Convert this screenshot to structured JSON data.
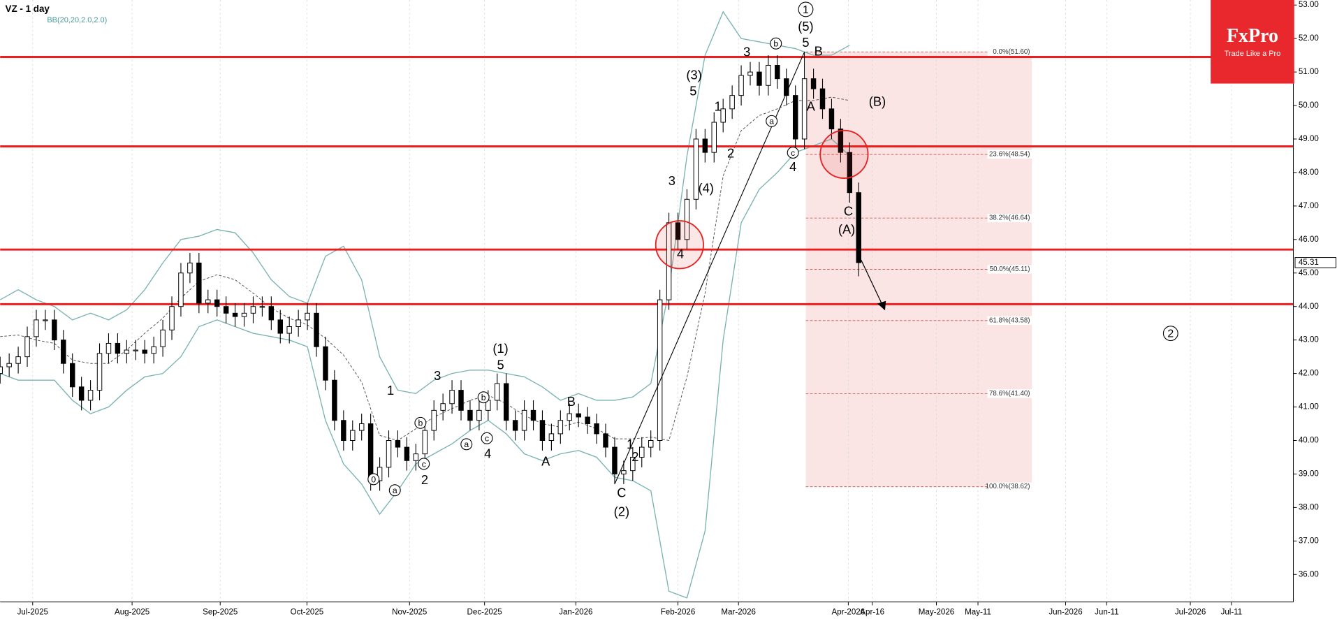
{
  "chart_data": {
    "type": "candlestick",
    "title": "VZ - 1 day",
    "indicator_label": "BB(20,20,2.0,2.0)",
    "x": [
      0,
      2,
      4,
      6,
      8,
      10,
      12,
      14,
      16,
      18,
      20,
      22,
      24,
      26,
      28,
      30,
      32,
      34,
      36,
      38,
      40,
      42,
      44,
      46,
      48,
      50,
      52,
      54,
      56,
      58,
      60,
      62,
      64,
      66,
      68,
      70,
      72,
      74,
      76,
      78,
      80,
      82,
      84,
      86,
      88,
      90,
      92,
      94,
      96,
      98,
      100,
      102,
      104,
      106,
      108,
      110,
      112,
      114,
      116,
      118,
      120,
      122,
      124,
      126,
      128,
      130,
      132,
      134,
      136,
      138,
      140,
      142,
      144,
      146,
      148,
      150,
      152,
      154,
      156,
      158,
      160,
      162,
      164,
      166,
      168,
      170,
      172,
      174,
      176,
      178,
      180,
      182,
      184,
      186,
      188,
      190
    ],
    "open": [
      42.0,
      42.2,
      42.3,
      42.5,
      43.1,
      43.6,
      43.6,
      43.0,
      42.3,
      41.6,
      41.2,
      41.5,
      42.6,
      42.9,
      42.6,
      42.7,
      42.7,
      42.6,
      42.8,
      43.3,
      44.0,
      45.0,
      45.3,
      44.1,
      44.2,
      44.0,
      43.8,
      43.7,
      43.8,
      44.0,
      44.0,
      43.6,
      43.2,
      43.4,
      43.6,
      43.8,
      42.8,
      41.8,
      40.6,
      40.0,
      40.3,
      40.5,
      38.8,
      39.2,
      40.0,
      39.8,
      39.4,
      39.6,
      40.3,
      40.9,
      41.1,
      41.5,
      40.9,
      40.6,
      40.9,
      41.2,
      41.7,
      40.6,
      40.3,
      40.9,
      40.6,
      40.0,
      40.2,
      40.6,
      40.8,
      40.7,
      40.5,
      40.2,
      39.8,
      39.0,
      39.1,
      39.5,
      39.8,
      40.0,
      44.2,
      46.5,
      46.0,
      47.2,
      49.0,
      48.6,
      49.5,
      49.9,
      50.3,
      50.9,
      51.0,
      50.6,
      51.2,
      50.8,
      50.3,
      49.0,
      50.8,
      50.5,
      49.9,
      49.3,
      48.6,
      47.4
    ],
    "high": [
      42.5,
      42.6,
      42.8,
      43.4,
      43.9,
      43.9,
      43.9,
      43.3,
      42.6,
      41.9,
      41.8,
      42.9,
      43.2,
      43.2,
      43.0,
      43.0,
      43.0,
      43.1,
      43.6,
      44.3,
      45.3,
      45.6,
      45.6,
      44.5,
      44.5,
      44.3,
      44.1,
      44.1,
      44.3,
      44.3,
      44.3,
      43.9,
      43.7,
      43.9,
      44.1,
      44.1,
      43.1,
      42.1,
      40.9,
      40.6,
      40.8,
      40.8,
      39.5,
      40.3,
      40.3,
      40.1,
      39.9,
      40.6,
      41.2,
      41.4,
      41.8,
      41.8,
      41.2,
      41.2,
      41.5,
      42.0,
      42.0,
      40.9,
      41.2,
      41.2,
      40.9,
      40.5,
      40.9,
      41.1,
      41.1,
      41.0,
      40.8,
      40.5,
      40.1,
      39.4,
      39.8,
      40.1,
      40.3,
      44.5,
      46.8,
      46.8,
      47.5,
      49.3,
      49.3,
      49.8,
      50.2,
      50.6,
      51.2,
      51.3,
      51.3,
      51.5,
      51.5,
      51.1,
      50.6,
      51.6,
      51.1,
      50.8,
      50.2,
      49.6,
      48.9,
      47.7
    ],
    "low": [
      41.7,
      41.9,
      42.0,
      42.2,
      42.8,
      43.3,
      42.7,
      42.0,
      41.3,
      40.9,
      40.9,
      41.2,
      42.3,
      42.3,
      42.3,
      42.4,
      42.3,
      42.3,
      42.5,
      43.0,
      43.7,
      44.7,
      43.8,
      43.8,
      43.7,
      43.5,
      43.4,
      43.4,
      43.5,
      43.7,
      43.3,
      42.9,
      42.9,
      43.1,
      43.3,
      42.5,
      41.5,
      40.3,
      39.7,
      39.7,
      40.0,
      38.5,
      38.5,
      38.9,
      39.5,
      39.1,
      39.1,
      39.3,
      40.0,
      40.6,
      40.8,
      40.6,
      40.3,
      40.3,
      40.6,
      40.9,
      40.3,
      40.0,
      40.0,
      40.3,
      39.7,
      39.7,
      39.9,
      40.3,
      40.4,
      40.2,
      39.9,
      39.5,
      38.7,
      38.7,
      38.8,
      39.2,
      39.5,
      39.7,
      43.9,
      45.7,
      45.7,
      46.9,
      48.3,
      48.3,
      49.2,
      49.6,
      50.0,
      50.6,
      50.3,
      50.3,
      50.5,
      50.0,
      48.7,
      48.7,
      50.2,
      49.6,
      49.0,
      48.3,
      47.1,
      44.9
    ],
    "close": [
      42.2,
      42.3,
      42.5,
      43.1,
      43.6,
      43.6,
      43.0,
      42.3,
      41.6,
      41.2,
      41.5,
      42.6,
      42.9,
      42.6,
      42.7,
      42.7,
      42.6,
      42.8,
      43.3,
      44.0,
      45.0,
      45.3,
      44.1,
      44.2,
      44.0,
      43.8,
      43.7,
      43.8,
      44.0,
      44.0,
      43.6,
      43.2,
      43.4,
      43.6,
      43.8,
      42.8,
      41.8,
      40.6,
      40.0,
      40.3,
      40.5,
      38.8,
      39.2,
      40.0,
      39.8,
      39.4,
      39.6,
      40.3,
      40.9,
      41.1,
      41.5,
      40.9,
      40.6,
      40.9,
      41.2,
      41.7,
      40.6,
      40.3,
      40.9,
      40.6,
      40.0,
      40.2,
      40.6,
      40.8,
      40.7,
      40.5,
      40.2,
      39.8,
      39.0,
      39.1,
      39.5,
      39.8,
      40.0,
      44.2,
      46.5,
      46.0,
      47.2,
      49.0,
      48.6,
      49.5,
      49.9,
      50.3,
      50.9,
      51.0,
      50.6,
      51.2,
      50.8,
      50.3,
      49.0,
      50.8,
      50.5,
      49.9,
      49.3,
      48.6,
      47.4,
      45.31
    ],
    "up_color": "#ffffff",
    "down_color": "#000000",
    "bands": {
      "color": "#7ab3b3",
      "x": [
        0,
        4,
        8,
        12,
        16,
        20,
        24,
        28,
        32,
        36,
        40,
        44,
        48,
        52,
        56,
        60,
        64,
        68,
        72,
        76,
        80,
        84,
        88,
        92,
        96,
        100,
        104,
        108,
        112,
        116,
        120,
        124,
        128,
        132,
        136,
        140,
        144,
        148,
        152,
        156,
        160,
        164,
        168,
        172,
        176,
        180,
        184,
        188
      ],
      "upper": [
        44.2,
        44.5,
        44.2,
        44.0,
        43.6,
        43.8,
        43.6,
        43.9,
        44.5,
        45.3,
        46.0,
        46.1,
        46.3,
        46.2,
        45.6,
        44.8,
        44.3,
        44.1,
        45.5,
        45.8,
        44.8,
        42.5,
        41.5,
        41.4,
        41.8,
        42.0,
        42.1,
        42.1,
        42.0,
        41.9,
        41.6,
        41.2,
        41.4,
        41.2,
        41.2,
        41.3,
        41.7,
        44.5,
        48.5,
        51.5,
        52.8,
        52.0,
        51.9,
        51.8,
        51.7,
        51.5,
        51.5,
        51.8
      ],
      "middle": [
        43.1,
        43.15,
        43.0,
        42.9,
        42.4,
        42.3,
        42.3,
        42.7,
        43.2,
        43.65,
        44.25,
        44.75,
        44.95,
        44.8,
        44.4,
        43.95,
        43.65,
        43.45,
        43.05,
        42.55,
        41.75,
        40.15,
        40.0,
        40.35,
        40.7,
        40.95,
        41.2,
        41.35,
        41.1,
        40.75,
        40.5,
        40.4,
        40.55,
        40.35,
        40.05,
        40.05,
        40.1,
        40.0,
        41.9,
        44.4,
        47.9,
        49.25,
        49.7,
        49.9,
        50.15,
        50.15,
        50.25,
        50.15
      ],
      "lower": [
        42.0,
        41.8,
        41.8,
        41.8,
        41.2,
        40.8,
        41.0,
        41.5,
        41.9,
        42.0,
        42.5,
        43.4,
        43.6,
        43.4,
        43.2,
        43.1,
        43.0,
        42.8,
        40.6,
        39.3,
        38.7,
        37.8,
        38.5,
        39.3,
        39.6,
        39.9,
        40.3,
        40.6,
        40.2,
        39.6,
        39.4,
        39.6,
        39.7,
        39.5,
        38.9,
        38.8,
        38.5,
        35.5,
        35.3,
        37.3,
        43.0,
        46.5,
        47.5,
        48.0,
        48.6,
        48.8,
        49.0,
        48.5
      ]
    },
    "horizontal_lines": {
      "color": "#ee1c1c",
      "values": [
        51.45,
        48.78,
        45.7,
        44.07
      ]
    },
    "fib_levels": {
      "color": "#c0504d",
      "x": [
        178.3,
        228.3
      ],
      "levels": [
        {
          "value": 51.6,
          "label": "0.0%(51.60)"
        },
        {
          "value": 48.54,
          "label": "23.6%(48.54)"
        },
        {
          "value": 46.64,
          "label": "38.2%(46.64)"
        },
        {
          "value": 45.11,
          "label": "50.0%(45.11)"
        },
        {
          "value": 43.58,
          "label": "61.8%(43.58)"
        },
        {
          "value": 41.4,
          "label": "78.6%(41.40)"
        },
        {
          "value": 38.62,
          "label": "100.0%(38.62)"
        }
      ]
    },
    "last_price": 45.31,
    "xlim": [
      0,
      286.2
    ],
    "ylim": [
      35.18,
      53.15
    ],
    "xticks": [
      {
        "value": 7.2,
        "label": "Jul-2025"
      },
      {
        "value": 29.2,
        "label": "Aug-2025"
      },
      {
        "value": 48.7,
        "label": "Sep-2025"
      },
      {
        "value": 67.9,
        "label": "Oct-2025"
      },
      {
        "value": 90.6,
        "label": "Nov-2025"
      },
      {
        "value": 107.2,
        "label": "Dec-2025"
      },
      {
        "value": 127.4,
        "label": "Jan-2026"
      },
      {
        "value": 150.0,
        "label": "Feb-2026"
      },
      {
        "value": 163.4,
        "label": "Mar-2026"
      },
      {
        "value": 187.7,
        "label": "Apr-2026"
      },
      {
        "value": 193.0,
        "label": "Apr-16"
      },
      {
        "value": 207.2,
        "label": "May-2026"
      },
      {
        "value": 216.4,
        "label": "May-11"
      },
      {
        "value": 235.8,
        "label": "Jun-2026"
      },
      {
        "value": 244.9,
        "label": "Jun-11"
      },
      {
        "value": 263.4,
        "label": "Jul-2026"
      },
      {
        "value": 272.5,
        "label": "Jul-11"
      }
    ],
    "yticks": [
      {
        "value": 36,
        "label": "36.00"
      },
      {
        "value": 37,
        "label": "37.00"
      },
      {
        "value": 38,
        "label": "38.00"
      },
      {
        "value": 39,
        "label": "39.00"
      },
      {
        "value": 40,
        "label": "40.00"
      },
      {
        "value": 41,
        "label": "41.00"
      },
      {
        "value": 42,
        "label": "42.00"
      },
      {
        "value": 43,
        "label": "43.00"
      },
      {
        "value": 44,
        "label": "44.00"
      },
      {
        "value": 45,
        "label": "45.00"
      },
      {
        "value": 46,
        "label": "46.00"
      },
      {
        "value": 47,
        "label": "47.00"
      },
      {
        "value": 48,
        "label": "48.00"
      },
      {
        "value": 49,
        "label": "49.00"
      },
      {
        "value": 50,
        "label": "50.00"
      },
      {
        "value": 51,
        "label": "51.00"
      },
      {
        "value": 52,
        "label": "52.00"
      },
      {
        "value": 53,
        "label": "53.00"
      }
    ],
    "annotations": [
      "1",
      "0",
      "a",
      "2",
      "b",
      "c",
      "3",
      "a",
      "b",
      "c",
      "4",
      "(1)",
      "5",
      "A",
      "B",
      "C",
      "(2)",
      "1",
      "2",
      "3",
      "4",
      "(3)",
      "5",
      "(4)",
      "1",
      "2",
      "3",
      "b",
      "a",
      "c",
      "4",
      "1",
      "(5)",
      "5",
      "B",
      "A",
      "(B)",
      "C",
      "(A)",
      "2"
    ]
  },
  "logo": {
    "title": "FxPro",
    "tagline": "Trade Like a Pro"
  }
}
